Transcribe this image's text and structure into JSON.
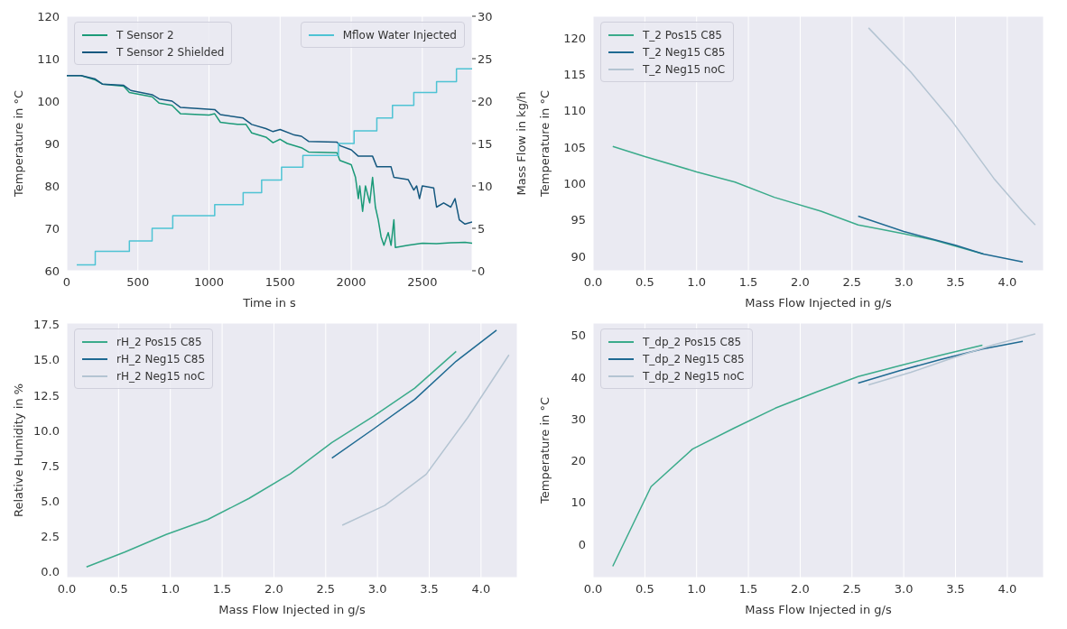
{
  "chart_data": [
    {
      "type": "line",
      "xlabel": "Time in s",
      "ylabel": "Temperature in °C",
      "y2label": "Mass Flow in kg/h",
      "xlim": [
        0,
        2850
      ],
      "xticks": [
        0,
        500,
        1000,
        1500,
        2000,
        2500
      ],
      "ylim": [
        60,
        120
      ],
      "yticks": [
        60,
        70,
        80,
        90,
        100,
        110,
        120
      ],
      "y2lim": [
        0,
        30
      ],
      "y2ticks": [
        0,
        5,
        10,
        15,
        20,
        25,
        30
      ],
      "grid": true,
      "legend": "top",
      "series": [
        {
          "name": "T Sensor 2",
          "color": "#1b9a78",
          "x": [
            0,
            100,
            200,
            250,
            400,
            440,
            600,
            650,
            740,
            800,
            1000,
            1040,
            1080,
            1200,
            1260,
            1300,
            1400,
            1450,
            1500,
            1550,
            1650,
            1700,
            1900,
            1920,
            2000,
            2030,
            2050,
            2060,
            2080,
            2100,
            2130,
            2150,
            2170,
            2190,
            2210,
            2230,
            2260,
            2280,
            2300,
            2310,
            2400,
            2500,
            2600,
            2700,
            2800,
            2850
          ],
          "values": [
            106,
            106,
            105,
            104,
            103.5,
            102,
            101,
            99.5,
            99,
            97,
            96.7,
            97,
            95,
            94.5,
            94.5,
            92.5,
            91.5,
            90.2,
            91,
            90,
            89,
            88,
            87.8,
            86,
            85,
            82,
            77,
            80,
            74,
            80,
            76,
            82,
            75,
            72,
            68,
            66,
            69,
            66,
            72,
            65.5,
            66,
            66.5,
            66.4,
            66.6,
            66.7,
            66.5
          ]
        },
        {
          "name": "T Sensor 2 Shielded",
          "color": "#15587f",
          "x": [
            0,
            100,
            200,
            250,
            400,
            450,
            600,
            650,
            740,
            800,
            1040,
            1080,
            1240,
            1300,
            1400,
            1450,
            1500,
            1600,
            1650,
            1700,
            1900,
            1920,
            2000,
            2050,
            2150,
            2180,
            2280,
            2300,
            2400,
            2440,
            2460,
            2480,
            2500,
            2580,
            2600,
            2650,
            2700,
            2730,
            2760,
            2800,
            2850
          ],
          "values": [
            106,
            106,
            105.2,
            104,
            103.7,
            102.5,
            101.5,
            100.5,
            100,
            98.5,
            98,
            96.8,
            96,
            94.5,
            93.5,
            92.8,
            93.3,
            92,
            91.7,
            90.5,
            90.3,
            89.5,
            88.5,
            87,
            87,
            84.5,
            84.5,
            82,
            81.5,
            79,
            80,
            77,
            80,
            79.5,
            75,
            76,
            75,
            77,
            72,
            71,
            71.5
          ]
        },
        {
          "name": "Mflow Water Injected",
          "type": "step",
          "axis": "y2",
          "color": "#4ec3d4",
          "x": [
            70,
            200,
            440,
            600,
            745,
            1040,
            1240,
            1370,
            1510,
            1660,
            1910,
            2020,
            2180,
            2290,
            2440,
            2600,
            2740,
            2850
          ],
          "values": [
            0.7,
            2.3,
            3.5,
            5.0,
            6.5,
            7.8,
            9.2,
            10.7,
            12.2,
            13.6,
            15.0,
            16.5,
            18.0,
            19.5,
            21.0,
            22.3,
            23.8,
            23.8
          ]
        }
      ]
    },
    {
      "type": "line",
      "xlabel": "Mass Flow Injected in g/s",
      "ylabel": "Temperature in °C",
      "xlim": [
        0,
        4.35
      ],
      "xticks": [
        {
          "value": 0,
          "label": "0.0"
        },
        0.5,
        {
          "value": 1,
          "label": "1.0"
        },
        1.5,
        {
          "value": 2,
          "label": "2.0"
        },
        2.5,
        {
          "value": 3,
          "label": "3.0"
        },
        3.5,
        {
          "value": 4,
          "label": "4.0"
        }
      ],
      "ylim": [
        88,
        123
      ],
      "yticks": [
        90,
        95,
        100,
        105,
        110,
        115,
        120
      ],
      "grid": true,
      "legend": "top left",
      "series": [
        {
          "name": "T_2 Pos15 C85",
          "color": "#3bab8b",
          "x": [
            0.19,
            0.5,
            1.0,
            1.37,
            1.75,
            2.2,
            2.56,
            3.0,
            3.3,
            3.77
          ],
          "values": [
            105.1,
            103.7,
            101.6,
            100.2,
            98.1,
            96.2,
            94.3,
            93.1,
            92.2,
            90.3
          ]
        },
        {
          "name": "T_2 Neg15 C85",
          "color": "#1f6a92",
          "x": [
            2.56,
            3.0,
            3.5,
            3.77,
            4.15
          ],
          "values": [
            95.5,
            93.4,
            91.5,
            90.3,
            89.2
          ]
        },
        {
          "name": "T_2 Neg15 noC",
          "color": "#b4c4d2",
          "x": [
            2.66,
            3.07,
            3.47,
            3.87,
            4.15,
            4.27
          ],
          "values": [
            121.4,
            115.3,
            108.5,
            100.7,
            96.1,
            94.3
          ]
        }
      ]
    },
    {
      "type": "line",
      "xlabel": "Mass Flow Injected in g/s",
      "ylabel": "Relative Humidity in %",
      "xlim": [
        0,
        4.35
      ],
      "xticks": [
        {
          "value": 0,
          "label": "0.0"
        },
        0.5,
        {
          "value": 1,
          "label": "1.0"
        },
        1.5,
        {
          "value": 2,
          "label": "2.0"
        },
        2.5,
        {
          "value": 3,
          "label": "3.0"
        },
        3.5,
        {
          "value": 4,
          "label": "4.0"
        }
      ],
      "ylim": [
        -0.4,
        17.6
      ],
      "yticks": [
        {
          "value": 0,
          "label": "0.0"
        },
        {
          "value": 2.5,
          "label": "2.5"
        },
        {
          "value": 5,
          "label": "5.0"
        },
        {
          "value": 7.5,
          "label": "7.5"
        },
        {
          "value": 10,
          "label": "10.0"
        },
        {
          "value": 12.5,
          "label": "12.5"
        },
        {
          "value": 15,
          "label": "15.0"
        },
        {
          "value": 17.5,
          "label": "17.5"
        }
      ],
      "grid": true,
      "legend": "top left",
      "series": [
        {
          "name": "rH_2 Pos15 C85",
          "color": "#3bab8b",
          "x": [
            0.19,
            0.56,
            0.96,
            1.36,
            1.76,
            2.16,
            2.56,
            2.96,
            3.36,
            3.76
          ],
          "values": [
            0.35,
            1.4,
            2.65,
            3.7,
            5.2,
            6.95,
            9.15,
            11.0,
            13.0,
            15.6
          ]
        },
        {
          "name": "rH_2 Neg15 C85",
          "color": "#1f6a92",
          "x": [
            2.56,
            2.96,
            3.36,
            3.76,
            4.15
          ],
          "values": [
            8.05,
            10.1,
            12.2,
            14.9,
            17.1
          ]
        },
        {
          "name": "rH_2 Neg15 noC",
          "color": "#b4c4d2",
          "x": [
            2.66,
            3.07,
            3.47,
            3.87,
            4.27
          ],
          "values": [
            3.3,
            4.7,
            6.9,
            10.9,
            15.35
          ]
        }
      ]
    },
    {
      "type": "line",
      "xlabel": "Mass Flow Injected in g/s",
      "ylabel": "Temperature in °C",
      "xlim": [
        0,
        4.35
      ],
      "xticks": [
        {
          "value": 0,
          "label": "0.0"
        },
        0.5,
        {
          "value": 1,
          "label": "1.0"
        },
        1.5,
        {
          "value": 2,
          "label": "2.0"
        },
        2.5,
        {
          "value": 3,
          "label": "3.0"
        },
        3.5,
        {
          "value": 4,
          "label": "4.0"
        }
      ],
      "ylim": [
        -8,
        53
      ],
      "yticks": [
        0,
        10,
        20,
        30,
        40,
        50
      ],
      "grid": true,
      "legend": "top left",
      "series": [
        {
          "name": "T_dp_2 Pos15 C85",
          "color": "#3bab8b",
          "x": [
            0.19,
            0.56,
            0.96,
            1.36,
            1.76,
            2.16,
            2.56,
            2.96,
            3.36,
            3.76
          ],
          "values": [
            -5.3,
            13.8,
            22.8,
            27.8,
            32.6,
            36.5,
            40.2,
            42.8,
            45.3,
            47.7
          ]
        },
        {
          "name": "T_dp_2 Neg15 C85",
          "color": "#1f6a92",
          "x": [
            2.56,
            2.96,
            3.36,
            3.76,
            4.15
          ],
          "values": [
            38.6,
            41.6,
            44.3,
            46.8,
            48.6
          ]
        },
        {
          "name": "T_dp_2 Neg15 noC",
          "color": "#b4c4d2",
          "x": [
            2.66,
            3.07,
            3.47,
            3.87,
            4.27
          ],
          "values": [
            38.2,
            41.2,
            44.6,
            47.8,
            50.4
          ]
        }
      ]
    }
  ]
}
